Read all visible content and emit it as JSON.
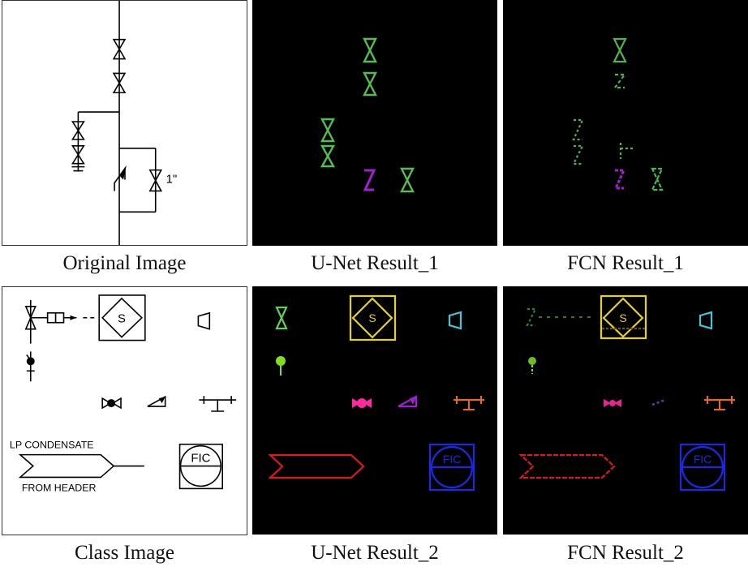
{
  "captions": {
    "original": "Original Image",
    "unet1": "U-Net Result_1",
    "fcn1": "FCN Result_1",
    "class_image": "Class Image",
    "unet2": "U-Net Result_2",
    "fcn2": "FCN Result_2"
  },
  "diagram_text": {
    "pipe_size": "1\"",
    "solenoid_letter": "S",
    "lp_condensate": "LP CONDENSATE",
    "from_header": "FROM HEADER",
    "fic": "FIC"
  },
  "colors": {
    "gate_valve": "#5fd35a",
    "check_valve": "#a020d0",
    "solenoid": "#e6d21e",
    "reducer": "#3ec8d8",
    "ball_valve": "#ff2aa0",
    "off_page": "#e01818",
    "instrument": "#1a2ae0",
    "ball_indicator": "#7fe020",
    "tee": "#e06a28"
  }
}
